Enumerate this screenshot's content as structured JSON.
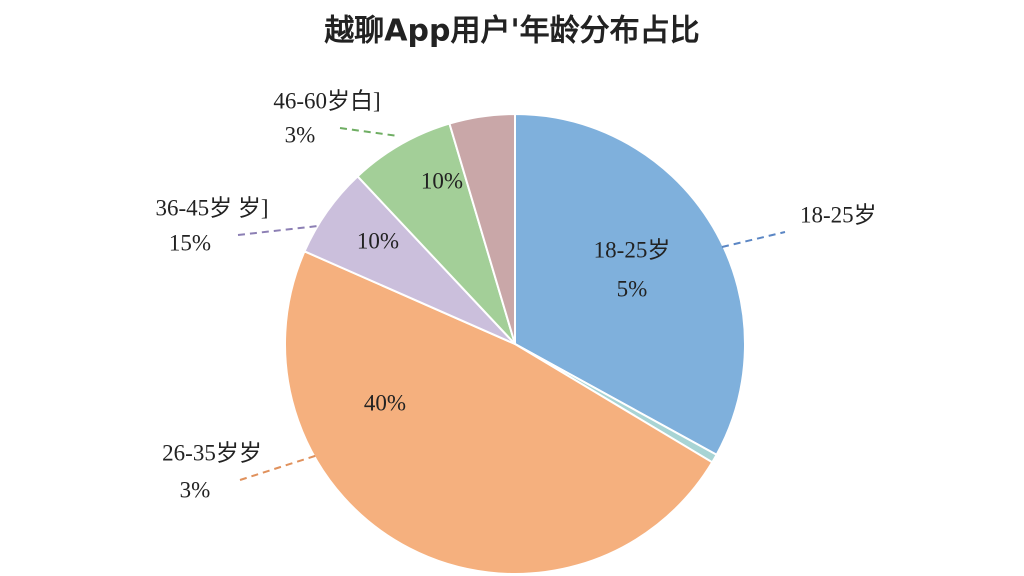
{
  "chart_data": {
    "type": "pie",
    "title": "越聊App用户'年龄分布占比",
    "values": [
      33,
      0.6,
      48,
      6.4,
      7.4,
      4.6
    ],
    "colors": [
      "#7fb0dc",
      "#a8d4d4",
      "#f5b07e",
      "#cbbfdc",
      "#a3cf98",
      "#c9a7a8"
    ],
    "inner_labels": [
      "18-25岁",
      "5%",
      "40%",
      "10%",
      "10%"
    ],
    "outer_labels": [
      "18-25岁",
      "26-35岁岁",
      "3%",
      "36-45岁 岁]",
      "15%",
      "46-60岁白]",
      "3%"
    ]
  }
}
